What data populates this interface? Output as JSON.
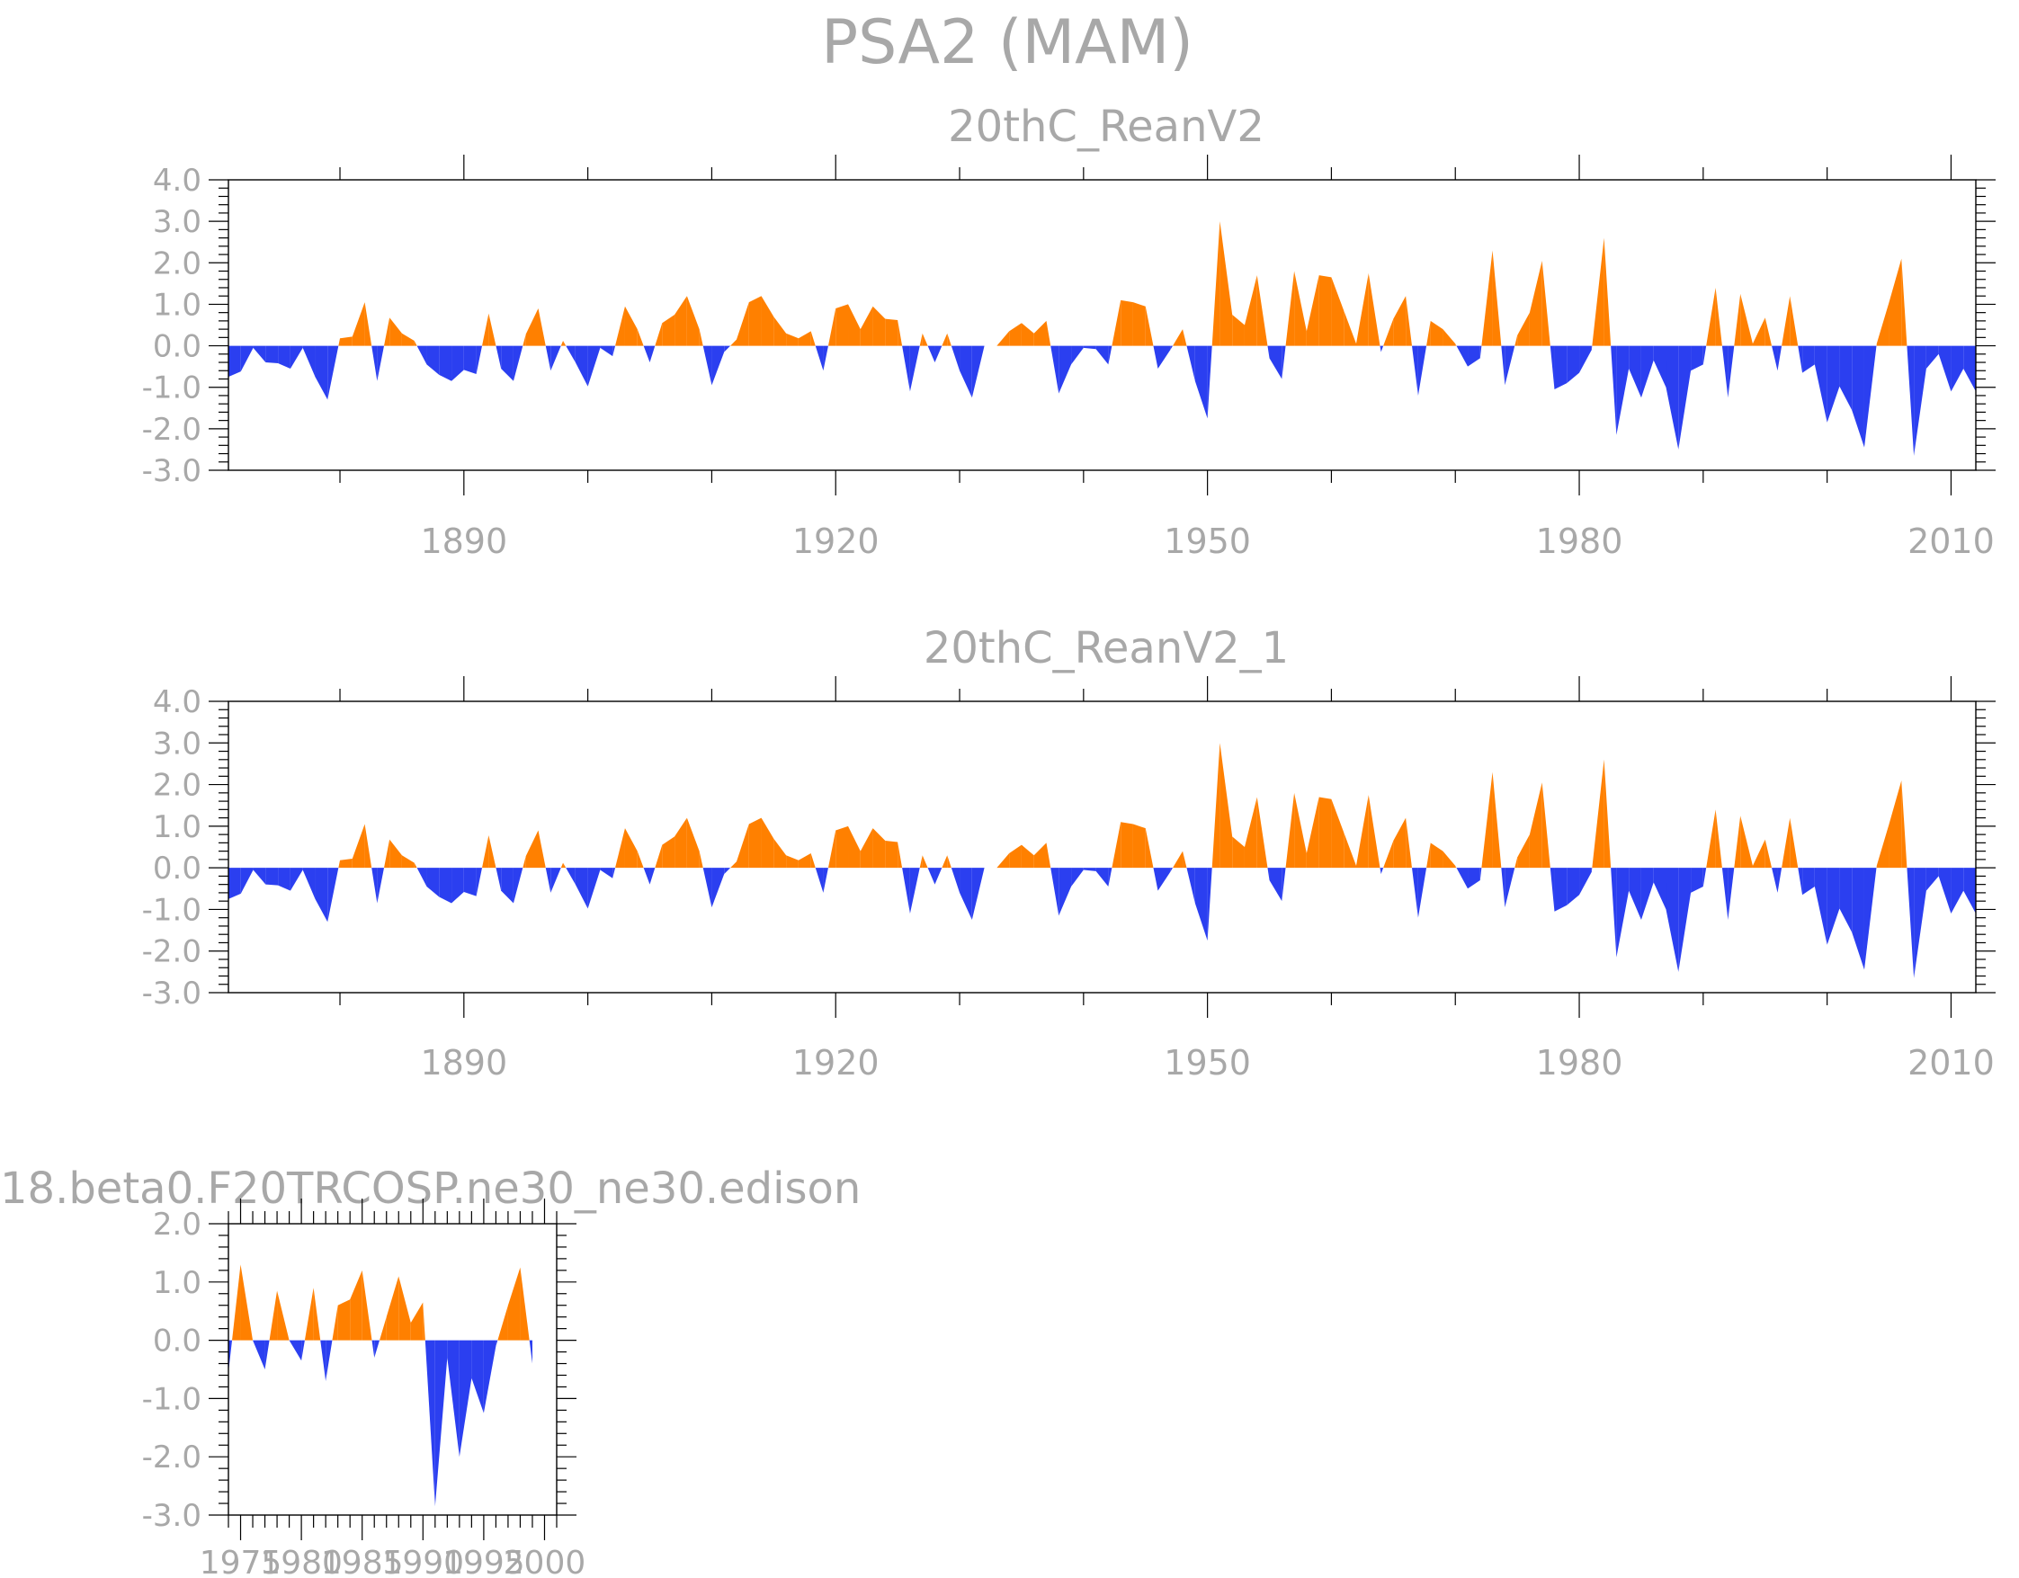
{
  "figure_title": "PSA2 (MAM)",
  "colors": {
    "positive": "#ff8000",
    "negative": "#2b3ff0",
    "text": "#a8a8a8"
  },
  "chart_data": [
    {
      "type": "area",
      "title": "20thC_ReanV2",
      "xlabel": "",
      "ylabel": "",
      "xlim": [
        1871,
        2012
      ],
      "ylim": [
        -3.0,
        4.0
      ],
      "xticks": [
        1890,
        1920,
        1950,
        1980,
        2010
      ],
      "yticks": [
        "4.0",
        "3.0",
        "2.0",
        "1.0",
        "0.0",
        "-1.0",
        "-2.0",
        "-3.0"
      ],
      "x_start": 1871,
      "values": [
        -0.75,
        -0.62,
        -0.05,
        -0.4,
        -0.42,
        -0.55,
        -0.05,
        -0.75,
        -1.3,
        0.18,
        0.22,
        1.05,
        -0.85,
        0.68,
        0.3,
        0.12,
        -0.45,
        -0.7,
        -0.85,
        -0.58,
        -0.68,
        0.78,
        -0.55,
        -0.85,
        0.28,
        0.9,
        -0.6,
        0.12,
        -0.4,
        -0.98,
        -0.05,
        -0.25,
        0.95,
        0.4,
        -0.4,
        0.55,
        0.75,
        1.2,
        0.4,
        -0.95,
        -0.15,
        0.15,
        1.05,
        1.2,
        0.7,
        0.3,
        0.18,
        0.35,
        -0.6,
        0.9,
        1.0,
        0.4,
        0.95,
        0.65,
        0.62,
        -1.1,
        0.3,
        -0.4,
        0.3,
        -0.6,
        -1.25,
        0.0,
        0.0,
        0.35,
        0.55,
        0.3,
        0.6,
        -1.15,
        -0.45,
        -0.05,
        -0.08,
        -0.45,
        1.1,
        1.05,
        0.95,
        -0.55,
        -0.1,
        0.4,
        -0.85,
        -1.75,
        3.0,
        0.75,
        0.5,
        1.7,
        -0.3,
        -0.8,
        1.8,
        0.35,
        1.7,
        1.65,
        0.85,
        0.05,
        1.75,
        -0.15,
        0.65,
        1.2,
        -1.2,
        0.6,
        0.4,
        0.05,
        -0.5,
        -0.3,
        2.3,
        -0.95,
        0.25,
        0.8,
        2.05,
        -1.05,
        -0.9,
        -0.65,
        -0.1,
        2.6,
        -2.15,
        -0.55,
        -1.25,
        -0.35,
        -1.0,
        -2.5,
        -0.6,
        -0.45,
        1.4,
        -1.25,
        1.25,
        0.05,
        0.68,
        -0.6,
        1.2,
        -0.65,
        -0.45,
        -1.85,
        -0.98,
        -1.55,
        -2.45,
        0.05,
        1.05,
        2.1,
        -2.65,
        -0.55,
        -0.2,
        -1.1,
        -0.55,
        -1.1
      ]
    },
    {
      "type": "area",
      "title": "20thC_ReanV2_1",
      "xlabel": "",
      "ylabel": "",
      "xlim": [
        1871,
        2012
      ],
      "ylim": [
        -3.0,
        4.0
      ],
      "xticks": [
        1890,
        1920,
        1950,
        1980,
        2010
      ],
      "yticks": [
        "4.0",
        "3.0",
        "2.0",
        "1.0",
        "0.0",
        "-1.0",
        "-2.0",
        "-3.0"
      ],
      "x_start": 1871,
      "values": [
        -0.75,
        -0.62,
        -0.05,
        -0.4,
        -0.42,
        -0.55,
        -0.05,
        -0.75,
        -1.3,
        0.18,
        0.22,
        1.05,
        -0.85,
        0.68,
        0.3,
        0.12,
        -0.45,
        -0.7,
        -0.85,
        -0.58,
        -0.68,
        0.78,
        -0.55,
        -0.85,
        0.28,
        0.9,
        -0.6,
        0.12,
        -0.4,
        -0.98,
        -0.05,
        -0.25,
        0.95,
        0.4,
        -0.4,
        0.55,
        0.75,
        1.2,
        0.4,
        -0.95,
        -0.15,
        0.15,
        1.05,
        1.2,
        0.7,
        0.3,
        0.18,
        0.35,
        -0.6,
        0.9,
        1.0,
        0.4,
        0.95,
        0.65,
        0.62,
        -1.1,
        0.3,
        -0.4,
        0.3,
        -0.6,
        -1.25,
        0.0,
        0.0,
        0.35,
        0.55,
        0.3,
        0.6,
        -1.15,
        -0.45,
        -0.05,
        -0.08,
        -0.45,
        1.1,
        1.05,
        0.95,
        -0.55,
        -0.1,
        0.4,
        -0.85,
        -1.75,
        3.0,
        0.75,
        0.5,
        1.7,
        -0.3,
        -0.8,
        1.8,
        0.35,
        1.7,
        1.65,
        0.85,
        0.05,
        1.75,
        -0.15,
        0.65,
        1.2,
        -1.2,
        0.6,
        0.4,
        0.05,
        -0.5,
        -0.3,
        2.3,
        -0.95,
        0.25,
        0.8,
        2.05,
        -1.05,
        -0.9,
        -0.65,
        -0.1,
        2.6,
        -2.15,
        -0.55,
        -1.25,
        -0.35,
        -1.0,
        -2.5,
        -0.6,
        -0.45,
        1.4,
        -1.25,
        1.25,
        0.05,
        0.68,
        -0.6,
        1.2,
        -0.65,
        -0.45,
        -1.85,
        -0.98,
        -1.55,
        -2.45,
        0.05,
        1.05,
        2.1,
        -2.65,
        -0.55,
        -0.2,
        -1.1,
        -0.55,
        -1.1
      ]
    },
    {
      "type": "area",
      "title": "18.beta0.F20TRCOSP.ne30_ne30.edison",
      "xlabel": "",
      "ylabel": "",
      "xlim": [
        1974,
        2001
      ],
      "ylim": [
        -3.0,
        2.0
      ],
      "xticks": [
        1975,
        1980,
        1985,
        1990,
        1995,
        2000
      ],
      "xtick_labels": [
        "1975",
        "1980",
        "1985",
        "1990",
        "1995",
        "2000"
      ],
      "yticks": [
        "2.0",
        "1.0",
        "0.0",
        "-1.0",
        "-2.0",
        "-3.0"
      ],
      "x_start": 1974,
      "values": [
        -0.55,
        1.3,
        0.0,
        -0.5,
        0.85,
        0.0,
        -0.35,
        0.9,
        -0.7,
        0.6,
        0.7,
        1.2,
        -0.3,
        0.4,
        1.1,
        0.3,
        0.65,
        -2.85,
        -0.3,
        -2.0,
        -0.65,
        -1.25,
        -0.1,
        0.6,
        1.25,
        -0.4
      ]
    }
  ]
}
